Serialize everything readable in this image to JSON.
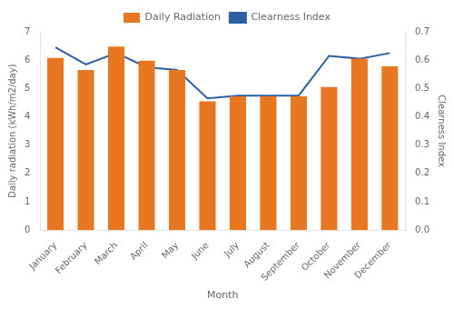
{
  "chart_data": {
    "type": "bar",
    "categories": [
      "January",
      "February",
      "March",
      "April",
      "May",
      "June",
      "July",
      "August",
      "September",
      "October",
      "November",
      "December"
    ],
    "series": [
      {
        "name": "Daily Radiation",
        "type": "bar",
        "color": "#E87722",
        "values": [
          6.08,
          5.65,
          6.48,
          5.98,
          5.65,
          4.55,
          4.72,
          4.72,
          4.72,
          5.05,
          6.05,
          5.78
        ]
      },
      {
        "name": "Clearness Index",
        "type": "line",
        "color": "#2E5FA3",
        "axis": "y2",
        "values": [
          0.645,
          0.585,
          0.625,
          0.575,
          0.565,
          0.465,
          0.475,
          0.475,
          0.475,
          0.615,
          0.605,
          0.625
        ]
      }
    ],
    "xlabel": "Month",
    "ylabel": "Daily radiation (kWh/m2/day)",
    "y2label": "Clearness Index",
    "ylim": [
      0,
      7
    ],
    "yticks": [
      0,
      1,
      2,
      3,
      4,
      5,
      6,
      7
    ],
    "y2lim": [
      0,
      0.7
    ],
    "y2ticks": [
      {
        "value": 0,
        "label": "0.0"
      },
      0.1,
      0.2,
      0.3,
      0.4,
      0.5,
      0.6,
      0.7
    ],
    "grid": false,
    "legend": "top"
  }
}
